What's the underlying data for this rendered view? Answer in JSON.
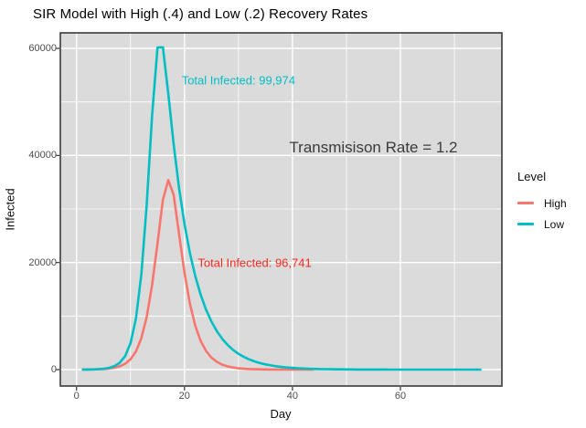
{
  "title": "SIR Model with High (.4) and Low (.2) Recovery Rates",
  "chart_data": {
    "type": "line",
    "xlabel": "Day",
    "ylabel": "Infected",
    "x_ticks": [
      0,
      20,
      40,
      60
    ],
    "x_minor_ticks": [
      10,
      30,
      50,
      70
    ],
    "y_ticks": [
      0,
      20000,
      40000,
      60000
    ],
    "y_tick_labels": [
      "0",
      "20000",
      "40000",
      "60000"
    ],
    "y_minor_ticks": [
      10000,
      30000,
      50000
    ],
    "xlim": [
      -3,
      78.8
    ],
    "ylim": [
      -3070,
      62900
    ],
    "panel_bg": "#dbdbdb",
    "grid_color": "#ffffff",
    "border_color": "#3a3a3a",
    "tick_color": "#333333",
    "x_start": 1,
    "x_step": 1,
    "series": [
      {
        "name": "High",
        "color": "#F8766D",
        "values": [
          10,
          18,
          32,
          58,
          105,
          189,
          340,
          611,
          1088,
          1927,
          3384,
          5852,
          9852,
          15837,
          23572,
          31700,
          35400,
          32600,
          25284,
          18106,
          12328,
          8178,
          5348,
          3469,
          2239,
          1441,
          926,
          595,
          382,
          245,
          157,
          101,
          65,
          41,
          27,
          17,
          11,
          7,
          5,
          3,
          2,
          1,
          1,
          1
        ]
      },
      {
        "name": "Low",
        "color": "#00BFC4",
        "values": [
          10,
          20,
          40,
          80,
          160,
          319,
          637,
          1269,
          2514,
          4937,
          9522,
          17728,
          30854,
          47526,
          60181,
          60203,
          51513,
          42006,
          33853,
          27181,
          21792,
          17459,
          13982,
          11196,
          8967,
          7179,
          5747,
          4601,
          3683,
          2948,
          2360,
          1889,
          1512,
          1210,
          968,
          775,
          620,
          496,
          397,
          318,
          254,
          203,
          163,
          130,
          104,
          83,
          67,
          53,
          43,
          34,
          27,
          22,
          18,
          14,
          11,
          9,
          7,
          6,
          5,
          4,
          3,
          3,
          2,
          2,
          1,
          1,
          1,
          1,
          1,
          0,
          0,
          0,
          0,
          0,
          0
        ]
      }
    ],
    "annotations": [
      {
        "text": "Total Infected: 99,974",
        "x": 30,
        "y": 54000,
        "color": "#00BFC4",
        "size": 13
      },
      {
        "text": "Total Infected: 96,741",
        "x": 33,
        "y": 20000,
        "color": "#F8281E",
        "size": 13
      },
      {
        "text": "Transmisison Rate = 1.2",
        "x": 55,
        "y": 41500,
        "color": "#3a3a3a",
        "size": 17
      }
    ],
    "legend": {
      "title": "Level",
      "items": [
        {
          "label": "High",
          "color": "#F8766D"
        },
        {
          "label": "Low",
          "color": "#00BFC4"
        }
      ]
    },
    "totals": {
      "high": "96,741",
      "low": "99,974"
    },
    "transmission_rate": "1.2"
  }
}
